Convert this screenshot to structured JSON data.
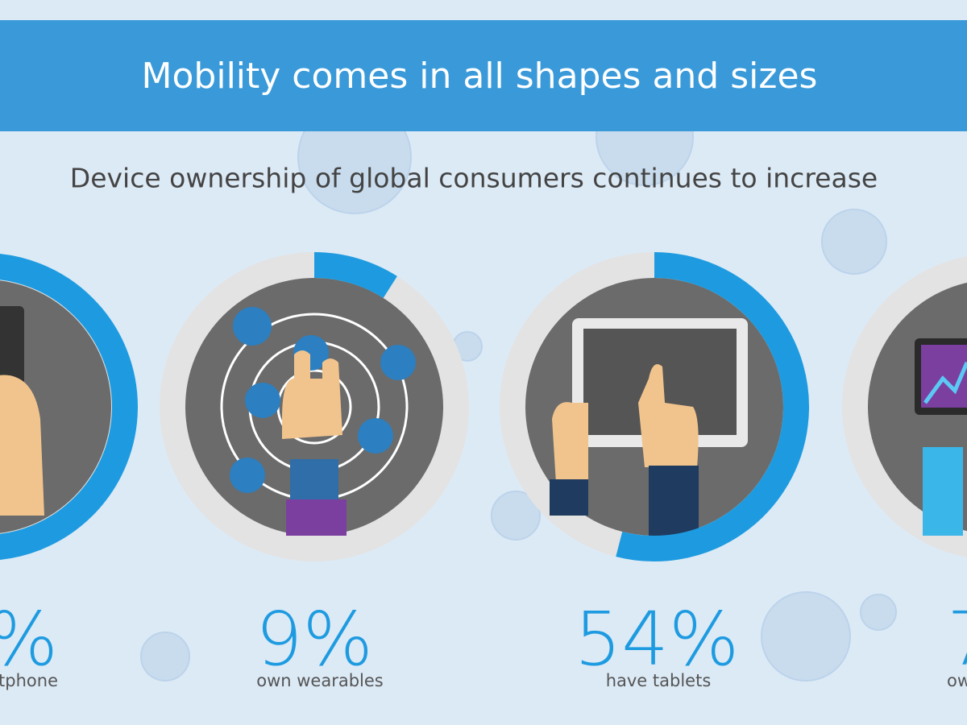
{
  "header": {
    "title": "Mobility comes in all shapes and sizes"
  },
  "subtitle": "Device ownership of global consumers continues to increase",
  "items": [
    {
      "value_label": "%",
      "caption": "tphone"
    },
    {
      "value": 9,
      "value_label": "9%",
      "caption": "own wearables"
    },
    {
      "value": 54,
      "value_label": "54%",
      "caption": "have tablets"
    },
    {
      "value_label": "7",
      "caption": "ow"
    }
  ]
}
